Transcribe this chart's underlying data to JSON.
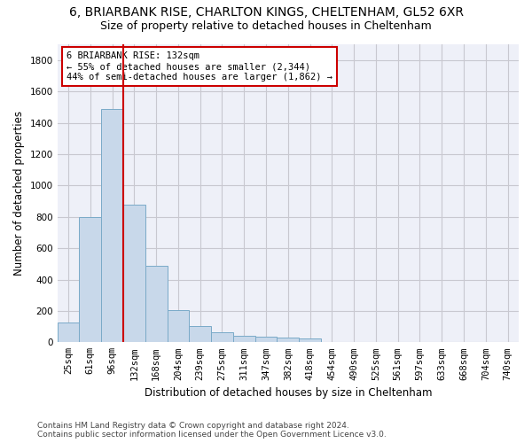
{
  "title_line1": "6, BRIARBANK RISE, CHARLTON KINGS, CHELTENHAM, GL52 6XR",
  "title_line2": "Size of property relative to detached houses in Cheltenham",
  "xlabel": "Distribution of detached houses by size in Cheltenham",
  "ylabel": "Number of detached properties",
  "categories": [
    "25sqm",
    "61sqm",
    "96sqm",
    "132sqm",
    "168sqm",
    "204sqm",
    "239sqm",
    "275sqm",
    "311sqm",
    "347sqm",
    "382sqm",
    "418sqm",
    "454sqm",
    "490sqm",
    "525sqm",
    "561sqm",
    "597sqm",
    "633sqm",
    "668sqm",
    "704sqm",
    "740sqm"
  ],
  "values": [
    125,
    800,
    1490,
    875,
    490,
    205,
    105,
    65,
    40,
    35,
    30,
    25,
    0,
    0,
    0,
    0,
    0,
    0,
    0,
    0,
    0
  ],
  "bar_color": "#c8d8ea",
  "bar_edge_color": "#7aaac8",
  "red_line_index": 3,
  "red_line_color": "#cc0000",
  "annotation_text": "6 BRIARBANK RISE: 132sqm\n← 55% of detached houses are smaller (2,344)\n44% of semi-detached houses are larger (1,862) →",
  "annotation_box_color": "#cc0000",
  "ylim": [
    0,
    1900
  ],
  "yticks": [
    0,
    200,
    400,
    600,
    800,
    1000,
    1200,
    1400,
    1600,
    1800
  ],
  "grid_color": "#c8c8d0",
  "background_color": "#eef0f8",
  "footer_text": "Contains HM Land Registry data © Crown copyright and database right 2024.\nContains public sector information licensed under the Open Government Licence v3.0.",
  "title_fontsize": 10,
  "subtitle_fontsize": 9,
  "axis_label_fontsize": 8.5,
  "tick_fontsize": 7.5,
  "footer_fontsize": 6.5
}
